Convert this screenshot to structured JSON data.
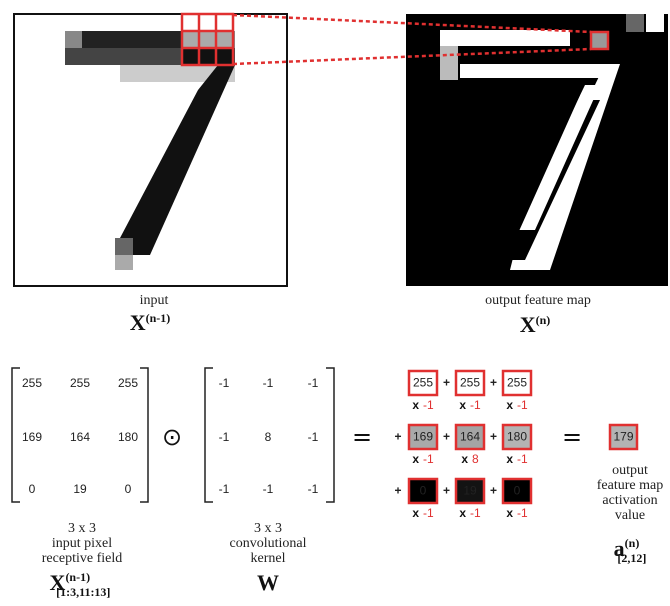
{
  "input_image": {
    "caption": "input",
    "symbol": "X",
    "superscript": "(n-1)"
  },
  "output_image": {
    "caption": "output feature map",
    "symbol": "X",
    "superscript": "(n)"
  },
  "receptive_field": {
    "rows": [
      [
        255,
        255,
        255
      ],
      [
        169,
        164,
        180
      ],
      [
        0,
        19,
        0
      ]
    ],
    "caption": [
      "3 x 3",
      "input pixel",
      "receptive field"
    ],
    "symbol": "X",
    "superscript": "(n-1)",
    "subscript": "[1:3,11:13]"
  },
  "operator": "⊙",
  "kernel": {
    "rows": [
      [
        -1,
        -1,
        -1
      ],
      [
        -1,
        8,
        -1
      ],
      [
        -1,
        -1,
        -1
      ]
    ],
    "caption": [
      "3 x 3",
      "convolutional",
      "kernel"
    ],
    "symbol": "W"
  },
  "equals": "=",
  "products": {
    "pixels": [
      [
        255,
        255,
        255
      ],
      [
        169,
        164,
        180
      ],
      [
        0,
        19,
        0
      ]
    ],
    "times": "x",
    "weights": [
      [
        -1,
        -1,
        -1
      ],
      [
        -1,
        8,
        -1
      ],
      [
        -1,
        -1,
        -1
      ]
    ],
    "plus": "+"
  },
  "result": {
    "value": 179,
    "caption": [
      "output",
      "feature map",
      "activation",
      "value"
    ],
    "symbol": "a",
    "superscript": "(n)",
    "subscript": "[2,12]"
  }
}
